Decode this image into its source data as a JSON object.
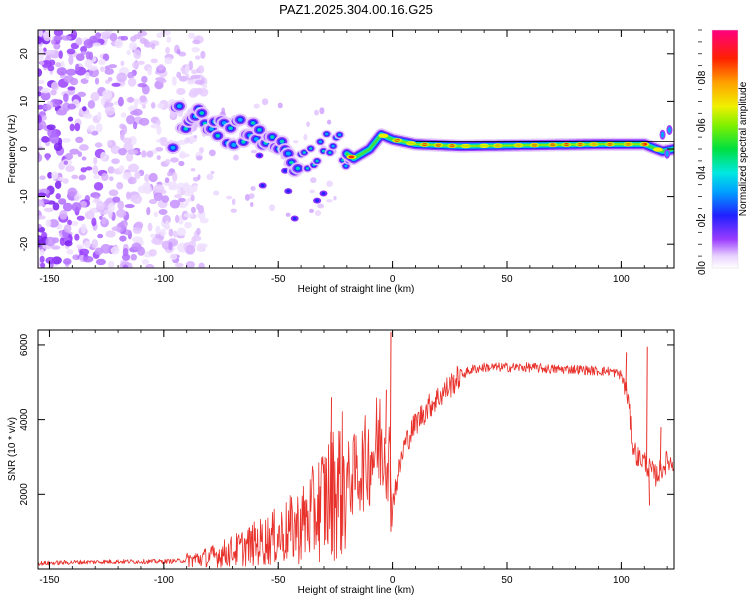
{
  "title": "PAZ1.2025.304.00.16.G25",
  "chart_data": [
    {
      "type": "heatmap",
      "xlabel": "Height of straight line (km)",
      "ylabel": "Frequency (Hz)",
      "xlim": [
        -155,
        123
      ],
      "ylim": [
        -25,
        25
      ],
      "xticks": [
        -150,
        -100,
        -50,
        0,
        50,
        100
      ],
      "xticklabels": [
        "-150",
        "-100",
        "-50",
        "0",
        "50",
        "100"
      ],
      "yticks": [
        -20,
        -10,
        0,
        10,
        20
      ],
      "yticklabels": [
        "-20",
        "-10",
        "0",
        "10",
        "20"
      ],
      "ridge": [
        {
          "x": -95,
          "y": 7
        },
        {
          "x": -85,
          "y": 6
        },
        {
          "x": -75,
          "y": 4
        },
        {
          "x": -65,
          "y": 3
        },
        {
          "x": -55,
          "y": 2
        },
        {
          "x": -48,
          "y": -1
        },
        {
          "x": -40,
          "y": -4
        },
        {
          "x": -32,
          "y": 0
        },
        {
          "x": -25,
          "y": 1
        },
        {
          "x": -20,
          "y": -1
        },
        {
          "x": -17,
          "y": -2
        },
        {
          "x": -10,
          "y": 0
        },
        {
          "x": -5,
          "y": 3
        },
        {
          "x": 0,
          "y": 2
        },
        {
          "x": 10,
          "y": 1
        },
        {
          "x": 30,
          "y": 0.6
        },
        {
          "x": 60,
          "y": 0.8
        },
        {
          "x": 90,
          "y": 1
        },
        {
          "x": 110,
          "y": 1
        },
        {
          "x": 118,
          "y": -0.5
        },
        {
          "x": 123,
          "y": 0
        }
      ],
      "noise_region": {
        "x_from": -155,
        "x_to": -90
      },
      "colorbar": {
        "label": "Normalized spectral amplitude",
        "ticks": [
          0.0,
          0.2,
          0.4,
          0.6,
          0.8
        ],
        "ticklabels": [
          "0.0",
          "0.2",
          "0.4",
          "0.6",
          "0.8"
        ],
        "range": [
          0,
          1
        ]
      }
    },
    {
      "type": "line",
      "xlabel": "Height of straight line (km)",
      "ylabel": "SNR (10 * v/v)",
      "xlim": [
        -155,
        123
      ],
      "ylim": [
        0,
        6400
      ],
      "xticks": [
        -150,
        -100,
        -50,
        0,
        50,
        100
      ],
      "xticklabels": [
        "-150",
        "-100",
        "-50",
        "0",
        "50",
        "100"
      ],
      "yticks": [
        2000,
        4000,
        6000
      ],
      "yticklabels": [
        "2000",
        "4000",
        "6000"
      ],
      "color": "#e8312b",
      "series": [
        {
          "name": "SNR",
          "x": [
            -155,
            -140,
            -120,
            -100,
            -90,
            -80,
            -70,
            -60,
            -50,
            -40,
            -35,
            -30,
            -25,
            -20,
            -15,
            -10,
            -5,
            -2,
            0,
            5,
            10,
            15,
            20,
            25,
            30,
            35,
            40,
            50,
            60,
            70,
            80,
            90,
            95,
            100,
            103,
            105,
            107,
            110,
            112,
            115,
            118,
            120,
            123
          ],
          "values": [
            150,
            180,
            200,
            200,
            230,
            320,
            480,
            680,
            880,
            1180,
            1450,
            1850,
            2150,
            2350,
            2600,
            3000,
            3450,
            3300,
            1800,
            3300,
            3900,
            4300,
            4600,
            4900,
            5200,
            5350,
            5400,
            5400,
            5400,
            5350,
            5350,
            5300,
            5300,
            5200,
            4600,
            3300,
            3000,
            2900,
            2700,
            2500,
            2700,
            2900,
            2800
          ]
        }
      ],
      "spikes": [
        {
          "x": -27,
          "y": 4600
        },
        {
          "x": -1,
          "y": 6350
        },
        {
          "x": -3,
          "y": 4800
        },
        {
          "x": -1,
          "y": 1000
        },
        {
          "x": 102,
          "y": 5800
        },
        {
          "x": 111,
          "y": 5950
        },
        {
          "x": 112,
          "y": 1700
        },
        {
          "x": 117,
          "y": 3800
        }
      ]
    }
  ]
}
